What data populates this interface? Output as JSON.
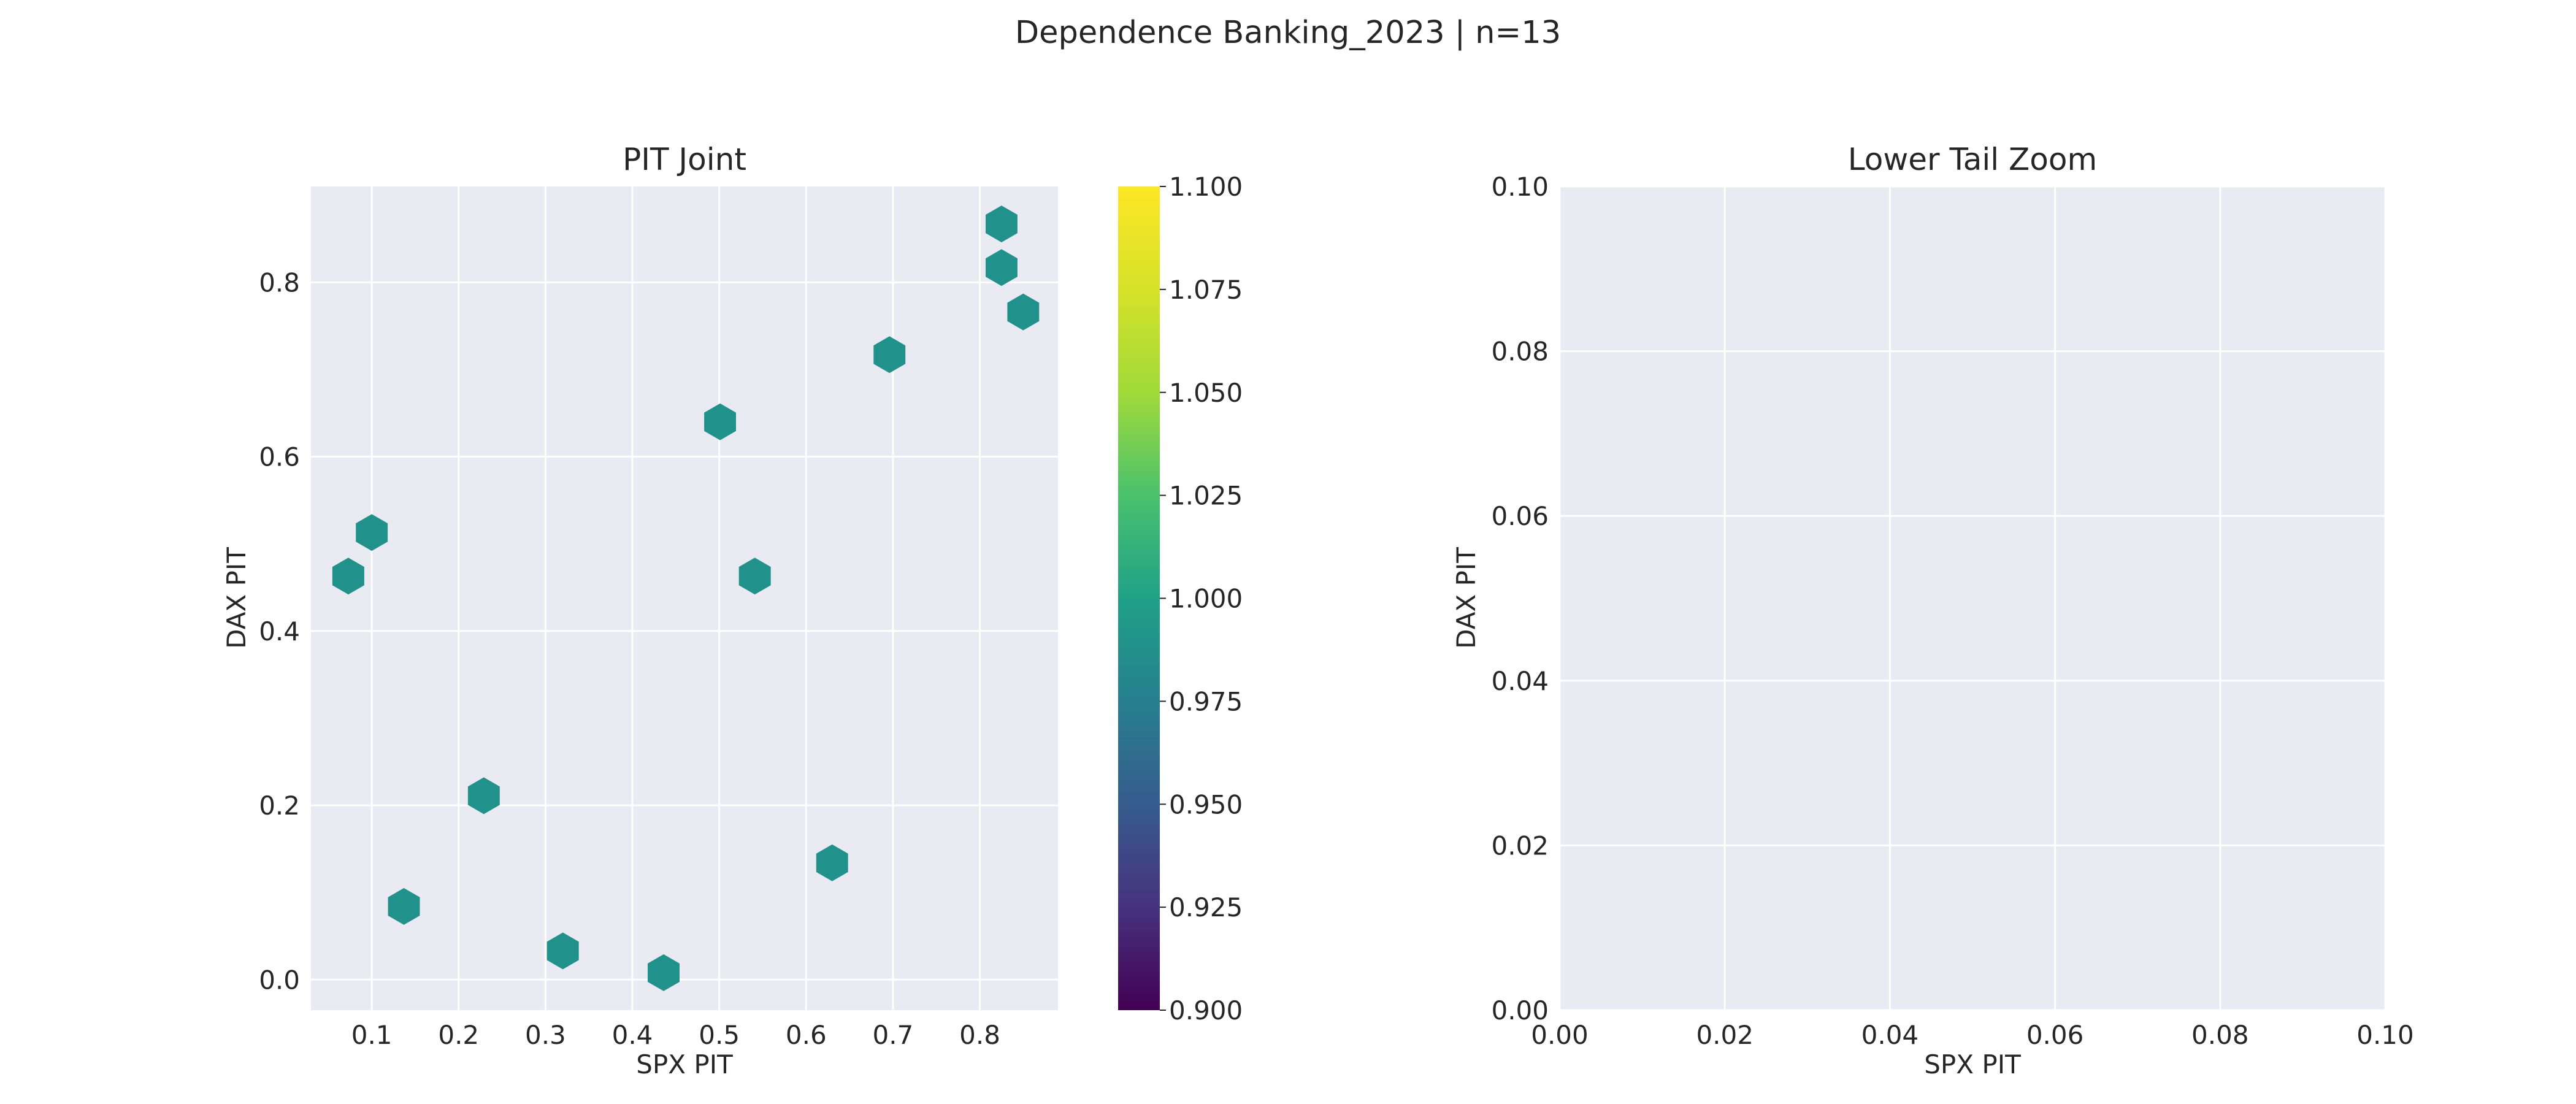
{
  "figure": {
    "suptitle": "Dependence Banking_2023 | n=13"
  },
  "colors": {
    "axes_bg": "#eaeaf2",
    "grid": "#ffffff",
    "hex": "#21918c",
    "text": "#262626"
  },
  "colormap": {
    "name": "viridis",
    "range": [
      0.9,
      1.1
    ],
    "ticks": [
      "0.900",
      "0.925",
      "0.950",
      "0.975",
      "1.000",
      "1.025",
      "1.050",
      "1.075",
      "1.100"
    ]
  },
  "chart_data": [
    {
      "type": "hexbin",
      "title": "PIT Joint",
      "xlabel": "SPX PIT",
      "ylabel": "DAX PIT",
      "xlim": [
        0.03,
        0.89
      ],
      "ylim": [
        -0.035,
        0.91
      ],
      "xticks": [
        "0.1",
        "0.2",
        "0.3",
        "0.4",
        "0.5",
        "0.6",
        "0.7",
        "0.8"
      ],
      "yticks": [
        "0.0",
        "0.2",
        "0.4",
        "0.6",
        "0.8"
      ],
      "grid": true,
      "colorbar": true,
      "points": [
        {
          "x": 0.073,
          "y": 0.463,
          "count": 1
        },
        {
          "x": 0.1,
          "y": 0.513,
          "count": 1
        },
        {
          "x": 0.137,
          "y": 0.084,
          "count": 1
        },
        {
          "x": 0.229,
          "y": 0.211,
          "count": 1
        },
        {
          "x": 0.32,
          "y": 0.033,
          "count": 1
        },
        {
          "x": 0.436,
          "y": 0.008,
          "count": 1
        },
        {
          "x": 0.501,
          "y": 0.64,
          "count": 1
        },
        {
          "x": 0.541,
          "y": 0.463,
          "count": 1
        },
        {
          "x": 0.63,
          "y": 0.134,
          "count": 1
        },
        {
          "x": 0.696,
          "y": 0.717,
          "count": 1
        },
        {
          "x": 0.825,
          "y": 0.817,
          "count": 1
        },
        {
          "x": 0.825,
          "y": 0.867,
          "count": 1
        },
        {
          "x": 0.85,
          "y": 0.766,
          "count": 1
        }
      ]
    },
    {
      "type": "scatter",
      "title": "Lower Tail Zoom",
      "xlabel": "SPX PIT",
      "ylabel": "DAX PIT",
      "xlim": [
        0.0,
        0.1
      ],
      "ylim": [
        0.0,
        0.1
      ],
      "xticks": [
        "0.00",
        "0.02",
        "0.04",
        "0.06",
        "0.08",
        "0.10"
      ],
      "yticks": [
        "0.00",
        "0.02",
        "0.04",
        "0.06",
        "0.08",
        "0.10"
      ],
      "grid": true,
      "points": []
    }
  ]
}
